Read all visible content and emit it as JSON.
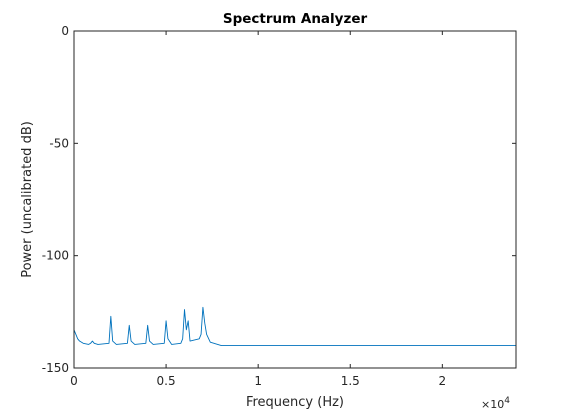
{
  "chart_data": {
    "type": "line",
    "title": "Spectrum Analyzer",
    "xlabel": "Frequency (Hz)",
    "ylabel": "Power (uncalibrated dB)",
    "x_exponent_label": "×10",
    "x_exponent_power": "4",
    "xlim": [
      0,
      24000
    ],
    "ylim": [
      -150,
      0
    ],
    "xticks": [
      0,
      5000,
      10000,
      15000,
      20000
    ],
    "xtick_labels": [
      "0",
      "0.5",
      "1",
      "1.5",
      "2"
    ],
    "yticks": [
      0,
      -50,
      -100,
      -150
    ],
    "ytick_labels": [
      "0",
      "-50",
      "-100",
      "-150"
    ],
    "grid": false,
    "colors": {
      "line": "#0072BD",
      "axis": "#262626"
    },
    "series": [
      {
        "x": [
          0,
          100,
          200,
          300,
          500,
          800,
          900,
          1000,
          1100,
          1300,
          1900,
          2000,
          2100,
          2300,
          2900,
          3000,
          3100,
          3300,
          3900,
          4000,
          4100,
          4300,
          4900,
          5000,
          5100,
          5300,
          5800,
          5900,
          6000,
          6100,
          6200,
          6300,
          6800,
          6900,
          7000,
          7100,
          7200,
          7400,
          7800,
          8000,
          10000,
          15000,
          20000,
          24000
        ],
        "y": [
          -133,
          -135,
          -137,
          -138,
          -139,
          -139.5,
          -139,
          -138,
          -139,
          -139.5,
          -139,
          -127,
          -138,
          -139.5,
          -139,
          -131,
          -138,
          -139.5,
          -139,
          -131,
          -138,
          -139.5,
          -139,
          -129,
          -137,
          -139.5,
          -139,
          -137,
          -124,
          -133,
          -129,
          -138,
          -137,
          -135,
          -123,
          -130,
          -135,
          -138.5,
          -139.5,
          -140,
          -140,
          -140,
          -140,
          -140
        ]
      }
    ]
  }
}
